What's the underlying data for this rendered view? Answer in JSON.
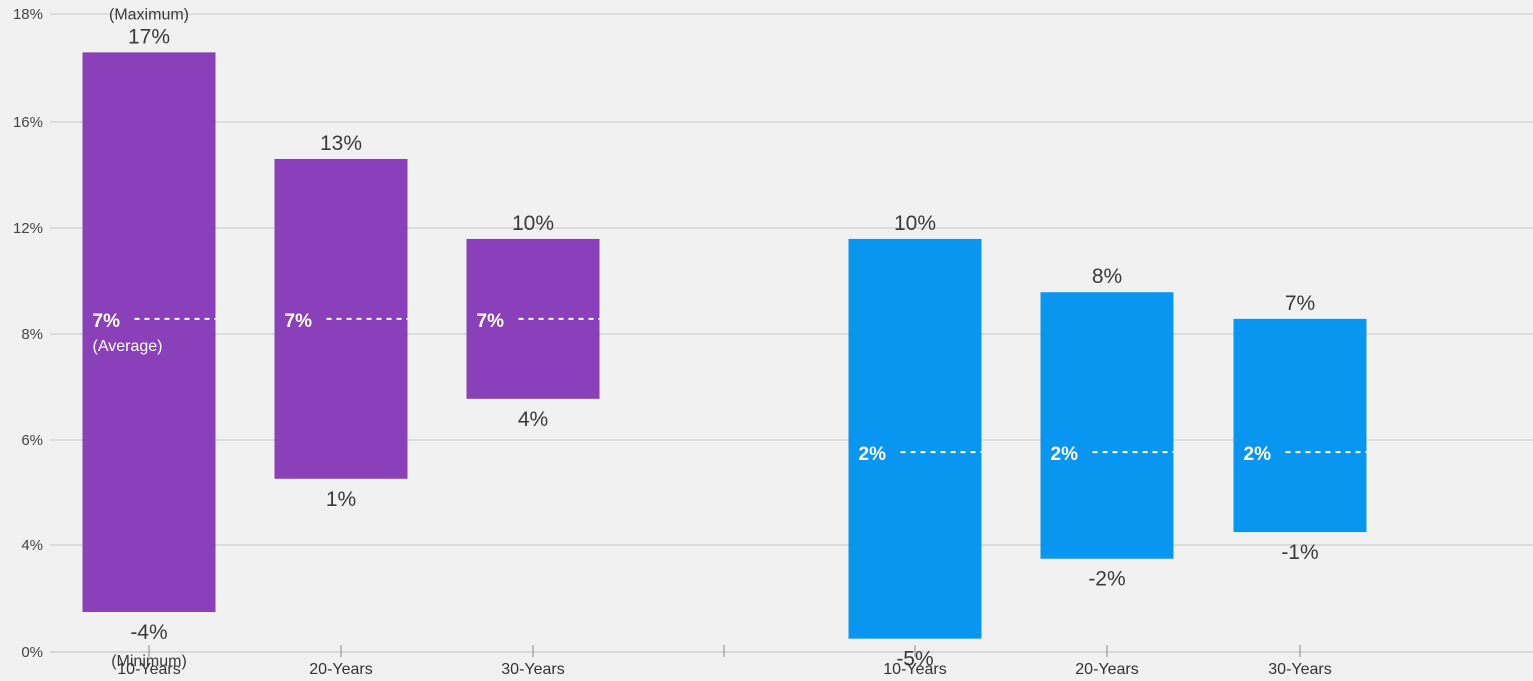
{
  "chart_data": {
    "type": "bar",
    "subtype": "floating-range",
    "y_ticks": [
      "0%",
      "4%",
      "6%",
      "8%",
      "12%",
      "16%",
      "18%"
    ],
    "groups": [
      {
        "color": "#8a40b9",
        "bars": [
          {
            "category": "10-Years",
            "max": 17,
            "min": -4,
            "avg": 7,
            "max_label": "17%",
            "min_label": "-4%",
            "avg_label": "7%",
            "max_note": "(Maximum)",
            "min_note": "(Minimum)",
            "avg_note": "(Average)"
          },
          {
            "category": "20-Years",
            "max": 13,
            "min": 1,
            "avg": 7,
            "max_label": "13%",
            "min_label": "1%",
            "avg_label": "7%"
          },
          {
            "category": "30-Years",
            "max": 10,
            "min": 4,
            "avg": 7,
            "max_label": "10%",
            "min_label": "4%",
            "avg_label": "7%"
          }
        ]
      },
      {
        "color": "#0996f0",
        "bars": [
          {
            "category": "10-Years",
            "max": 10,
            "min": -5,
            "avg": 2,
            "max_label": "10%",
            "min_label": "-5%",
            "avg_label": "2%"
          },
          {
            "category": "20-Years",
            "max": 8,
            "min": -2,
            "avg": 2,
            "max_label": "8%",
            "min_label": "-2%",
            "avg_label": "2%"
          },
          {
            "category": "30-Years",
            "max": 7,
            "min": -1,
            "avg": 2,
            "max_label": "7%",
            "min_label": "-1%",
            "avg_label": "2%"
          }
        ]
      }
    ],
    "grid": true,
    "legend": "none"
  }
}
